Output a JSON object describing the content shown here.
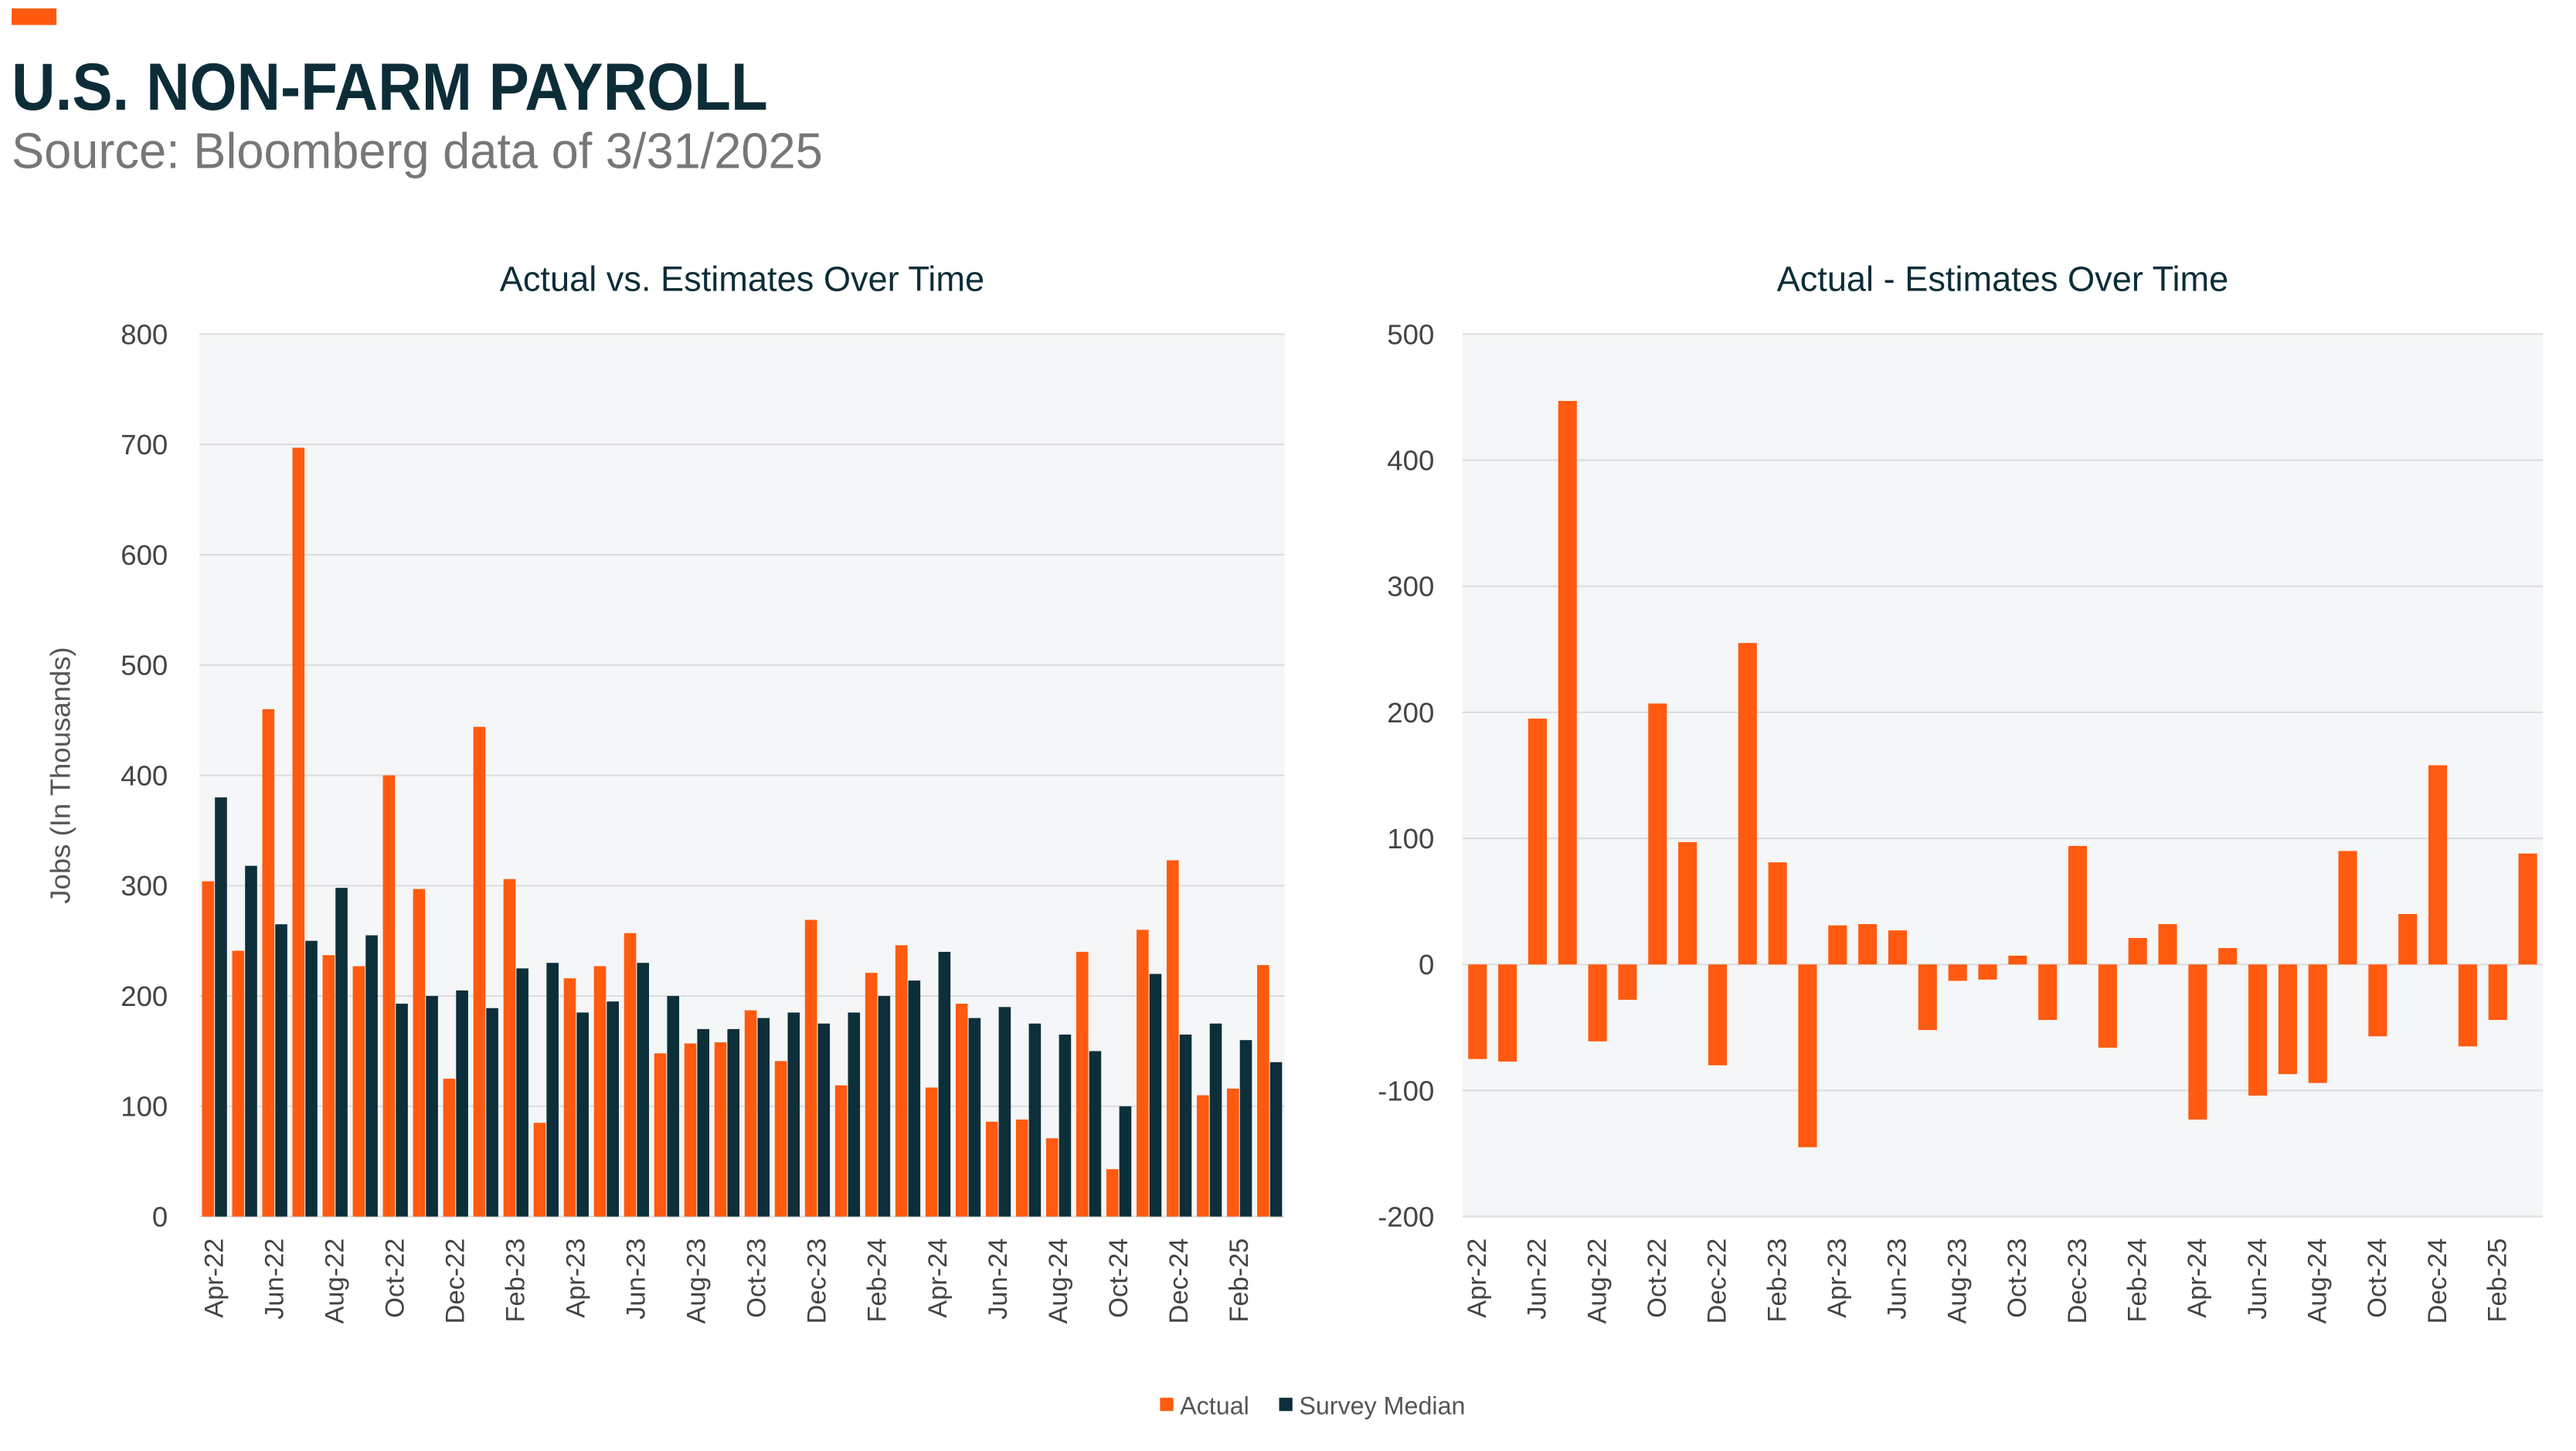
{
  "header": {
    "title": "U.S. NON-FARM PAYROLL",
    "subtitle": "Source: Bloomberg data of 3/31/2025"
  },
  "chart_data": [
    {
      "type": "bar",
      "title": "Actual vs. Estimates Over Time",
      "y_label": "Jobs (In Thousands)",
      "categories": [
        "Apr-22",
        null,
        "Jun-22",
        null,
        "Aug-22",
        null,
        "Oct-22",
        null,
        "Dec-22",
        null,
        "Feb-23",
        null,
        "Apr-23",
        null,
        "Jun-23",
        null,
        "Aug-23",
        null,
        "Oct-23",
        null,
        "Dec-23",
        null,
        "Feb-24",
        null,
        "Apr-24",
        null,
        "Jun-24",
        null,
        "Aug-24",
        null,
        "Oct-24",
        null,
        "Dec-24",
        null,
        "Feb-25",
        null
      ],
      "series": [
        {
          "name": "Actual",
          "color": "#ff5a0f",
          "values": [
            304,
            241,
            460,
            697,
            237,
            227,
            400,
            297,
            125,
            444,
            306,
            85,
            216,
            227,
            257,
            148,
            157,
            158,
            187,
            141,
            269,
            119,
            221,
            246,
            117,
            193,
            86,
            88,
            71,
            240,
            43,
            260,
            323,
            110,
            116,
            228
          ]
        },
        {
          "name": "Survey Median",
          "color": "#0d2f3a",
          "values": [
            380,
            318,
            265,
            250,
            298,
            255,
            193,
            200,
            205,
            189,
            225,
            230,
            185,
            195,
            230,
            200,
            170,
            170,
            180,
            185,
            175,
            185,
            200,
            214,
            240,
            180,
            190,
            175,
            165,
            150,
            100,
            220,
            165,
            175,
            160,
            140
          ]
        }
      ],
      "ylim": [
        0,
        800
      ],
      "yticks": [
        0,
        100,
        200,
        300,
        400,
        500,
        600,
        700,
        800
      ],
      "grid": true,
      "legend": "bottom"
    },
    {
      "type": "bar",
      "title": "Actual - Estimates Over Time",
      "categories": [
        "Apr-22",
        null,
        "Jun-22",
        null,
        "Aug-22",
        null,
        "Oct-22",
        null,
        "Dec-22",
        null,
        "Feb-23",
        null,
        "Apr-23",
        null,
        "Jun-23",
        null,
        "Aug-23",
        null,
        "Oct-23",
        null,
        "Dec-23",
        null,
        "Feb-24",
        null,
        "Apr-24",
        null,
        "Jun-24",
        null,
        "Aug-24",
        null,
        "Oct-24",
        null,
        "Dec-24",
        null,
        "Feb-25",
        null
      ],
      "color": "#ff5a0f",
      "values": [
        -75,
        -77,
        195,
        447,
        -61,
        -28,
        207,
        97,
        -80,
        255,
        81,
        -145,
        31,
        32,
        27,
        -52,
        -13,
        -12,
        7,
        -44,
        94,
        -66,
        21,
        32,
        -123,
        13,
        -104,
        -87,
        -94,
        90,
        -57,
        40,
        158,
        -65,
        -44,
        88
      ],
      "ylim": [
        -200,
        500
      ],
      "yticks": [
        -200,
        -100,
        0,
        100,
        200,
        300,
        400,
        500
      ],
      "grid": true
    }
  ]
}
